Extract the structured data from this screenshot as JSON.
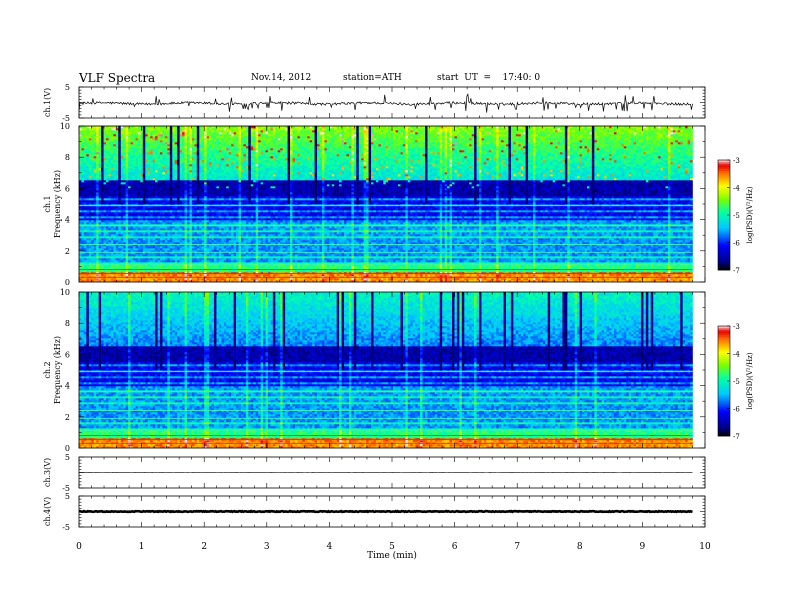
{
  "header": {
    "title": "VLF  Spectra",
    "date": "Nov.14, 2012",
    "station": "station=ATH",
    "start": "start  UT  =    17:40: 0"
  },
  "chart_data": [
    {
      "type": "line",
      "panel": "ch1",
      "ylabel": "ch.1(V)",
      "yticks": [
        "5",
        "-5"
      ],
      "ylim": [
        -5,
        5
      ],
      "baseline_V": -0.3,
      "noise_amplitude_V": 0.8,
      "spike_amplitude_V": 2.0
    },
    {
      "type": "heatmap",
      "panel": "ch1-spectrogram",
      "ylabel_channel": "ch.1",
      "ylabel": "Frequency  (kHz)",
      "yticks": [
        "0",
        "2",
        "4",
        "6",
        "8",
        "10"
      ],
      "ylim": [
        0,
        10
      ],
      "colorbar": {
        "label": "log(PSD)(V²/Hz)",
        "ticks": [
          "-3",
          "-4",
          "-5",
          "-6",
          "-7"
        ],
        "range": [
          -7,
          -3
        ]
      }
    },
    {
      "type": "heatmap",
      "panel": "ch2-spectrogram",
      "ylabel_channel": "ch.2",
      "ylabel": "Frequency  (kHz)",
      "yticks": [
        "0",
        "2",
        "4",
        "6",
        "8",
        "10"
      ],
      "ylim": [
        0,
        10
      ],
      "colorbar": {
        "label": "log(PSD)(V²/Hz)",
        "ticks": [
          "-3",
          "-4",
          "-5",
          "-6",
          "-7"
        ],
        "range": [
          -7,
          -3
        ]
      }
    },
    {
      "type": "line",
      "panel": "ch3",
      "ylabel": "ch.3(V)",
      "yticks": [
        "5",
        "-5"
      ],
      "ylim": [
        -5,
        5
      ],
      "baseline_V": 0.0
    },
    {
      "type": "line",
      "panel": "ch4",
      "ylabel": "ch.4(V)",
      "yticks": [
        "5",
        "-5"
      ],
      "ylim": [
        -5,
        5
      ],
      "baseline_V": 0.0
    }
  ],
  "x_axis": {
    "label": "Time  (min)",
    "ticks": [
      "0",
      "1",
      "2",
      "3",
      "4",
      "5",
      "6",
      "7",
      "8",
      "9",
      "10"
    ],
    "xlim": [
      0,
      10
    ],
    "data_end_min": 9.8
  }
}
